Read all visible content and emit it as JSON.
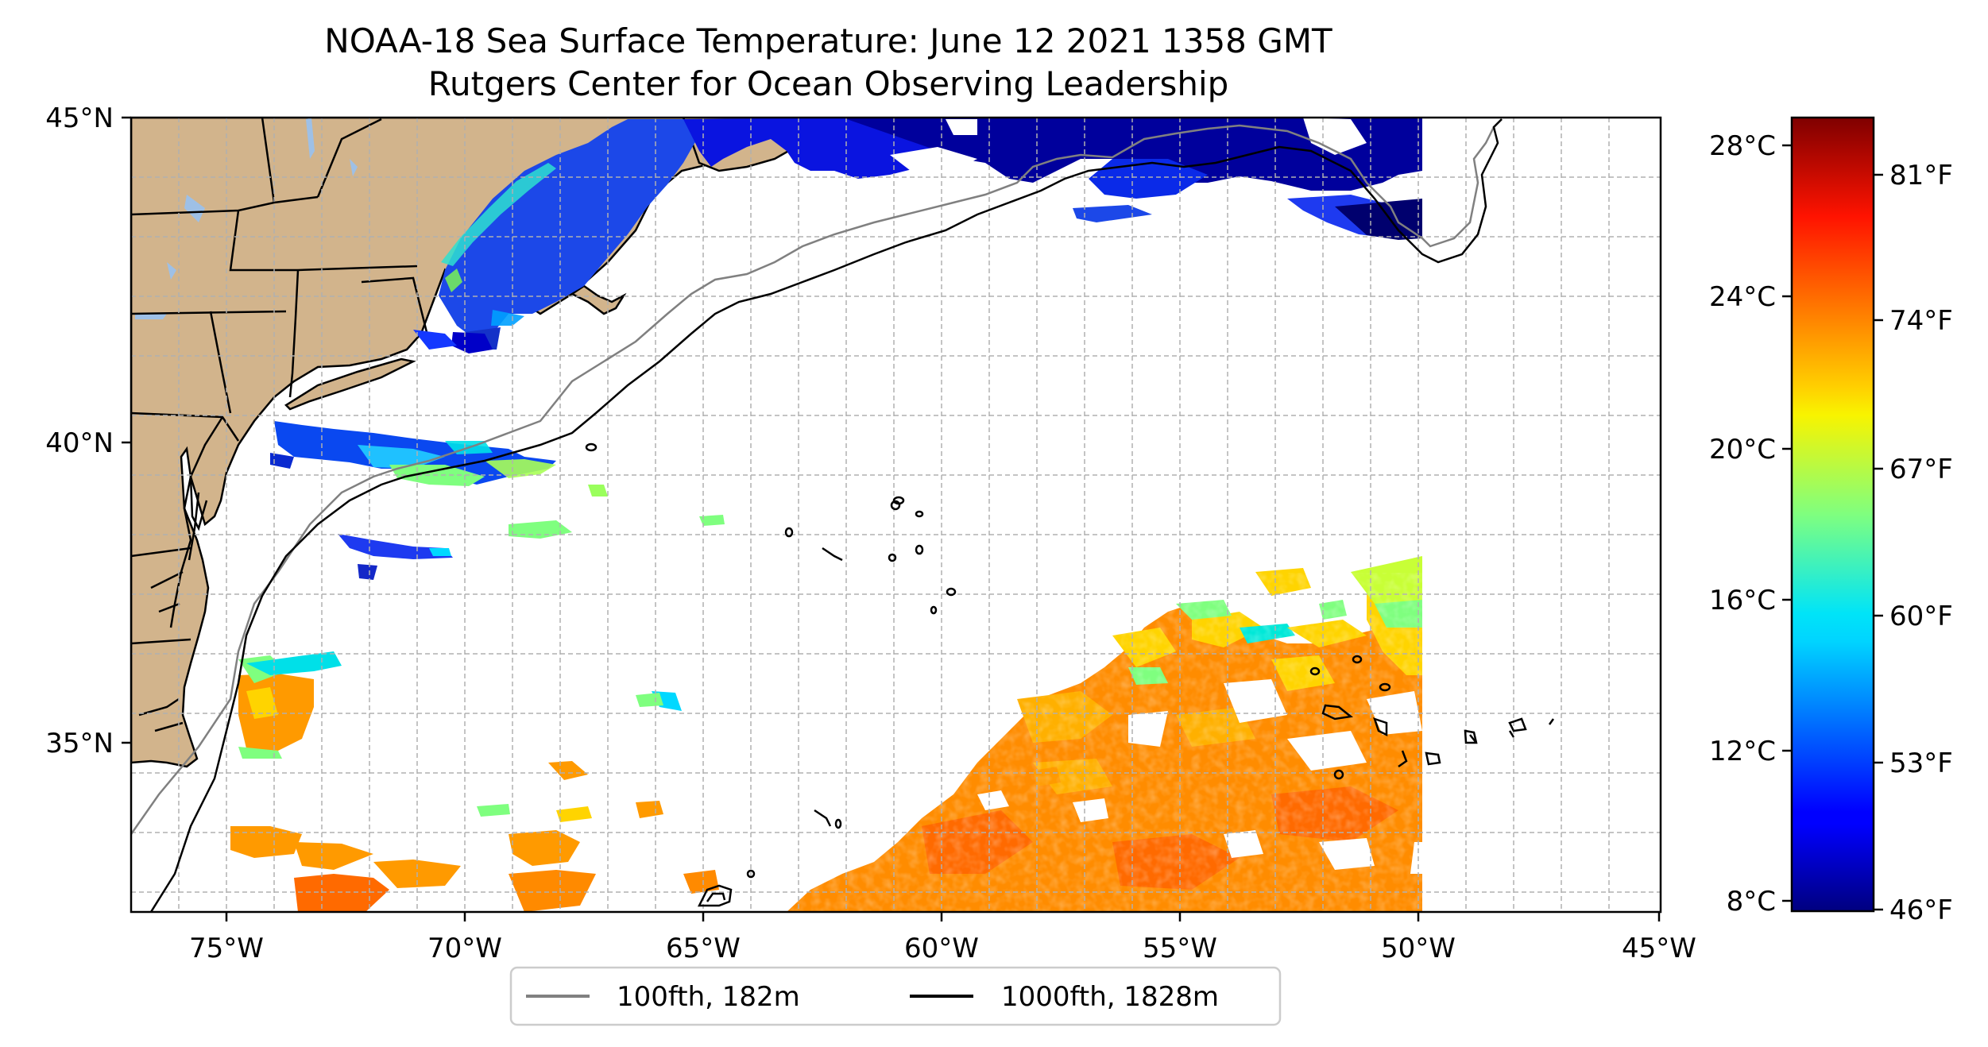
{
  "title": {
    "line1": "NOAA-18 Sea Surface Temperature: June 12 2021 1358 GMT",
    "line2": "Rutgers Center for Ocean Observing Leadership"
  },
  "map": {
    "lon_range": [
      -77,
      -45
    ],
    "lat_range": [
      32.3,
      45
    ],
    "lon_ticks": [
      {
        "lon": -75,
        "label": "75°W"
      },
      {
        "lon": -70,
        "label": "70°W"
      },
      {
        "lon": -65,
        "label": "65°W"
      },
      {
        "lon": -60,
        "label": "60°W"
      },
      {
        "lon": -55,
        "label": "55°W"
      },
      {
        "lon": -50,
        "label": "50°W"
      },
      {
        "lon": -45,
        "label": "45°W"
      }
    ],
    "lat_ticks": [
      {
        "lat": 45,
        "label": "45°N"
      },
      {
        "lat": 40,
        "label": "40°N"
      },
      {
        "lat": 35,
        "label": "35°N"
      }
    ],
    "grid": true,
    "land_color": "#d2b48c",
    "lake_color": "#9ec0e6",
    "sst_cutoff_lon": -50
  },
  "colorbar": {
    "colormap": "jet",
    "celsius_labels": [
      {
        "value": 8,
        "label": "8°C"
      },
      {
        "value": 12,
        "label": "12°C"
      },
      {
        "value": 16,
        "label": "16°C"
      },
      {
        "value": 20,
        "label": "20°C"
      },
      {
        "value": 24,
        "label": "24°C"
      },
      {
        "value": 28,
        "label": "28°C"
      }
    ],
    "fahrenheit_labels": [
      {
        "value": 46,
        "label": "46°F"
      },
      {
        "value": 53,
        "label": "53°F"
      },
      {
        "value": 60,
        "label": "60°F"
      },
      {
        "value": 67,
        "label": "67°F"
      },
      {
        "value": 74,
        "label": "74°F"
      },
      {
        "value": 81,
        "label": "81°F"
      }
    ]
  },
  "legend": {
    "position": "bottom-center",
    "items": [
      {
        "label": "100fth, 182m",
        "color": "#808080"
      },
      {
        "label": "1000fth, 1828m",
        "color": "#000000"
      }
    ]
  }
}
